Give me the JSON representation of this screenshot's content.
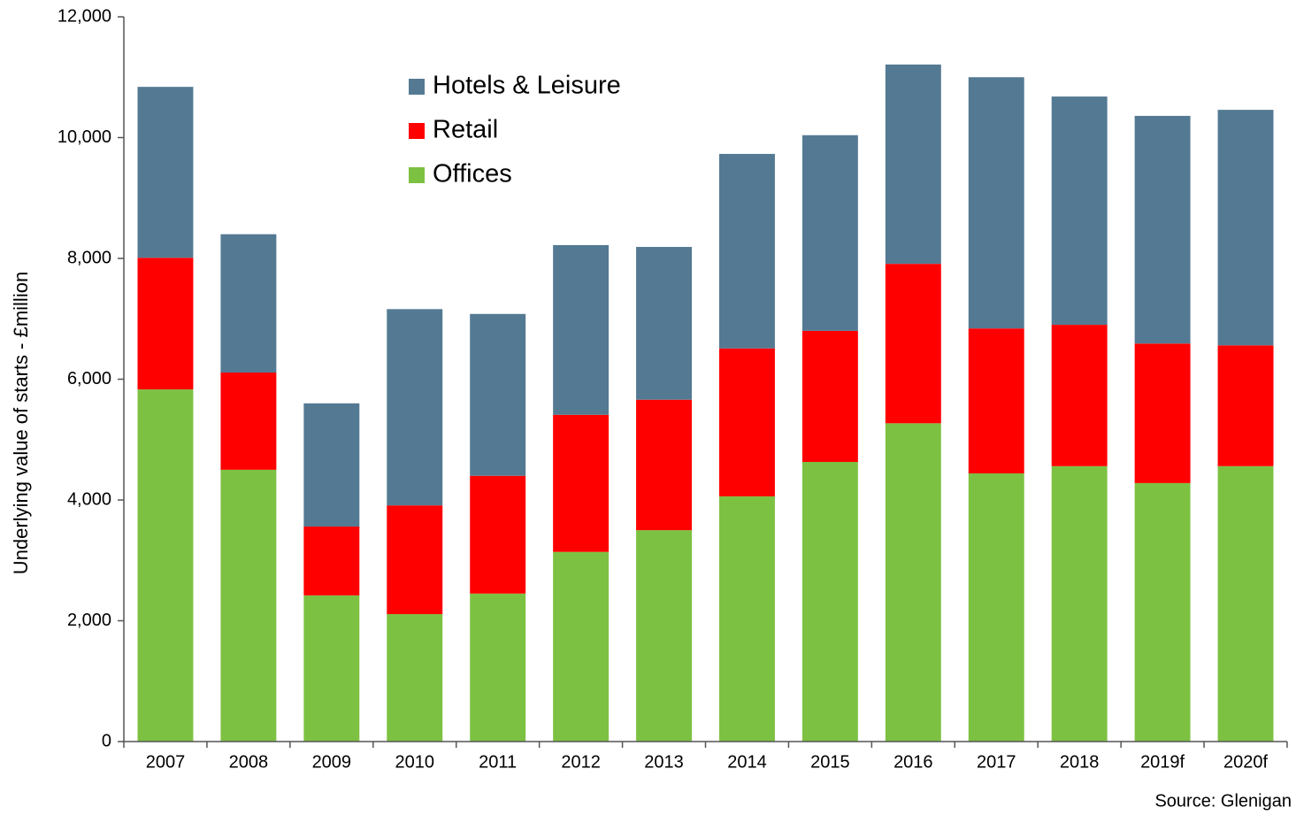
{
  "chart_data": {
    "type": "stacked-bar",
    "y_label": "Underlying value of starts - £million",
    "source": "Source: Glenigan",
    "categories": [
      "2007",
      "2008",
      "2009",
      "2010",
      "2011",
      "2012",
      "2013",
      "2014",
      "2015",
      "2016",
      "2017",
      "2018",
      "2019f",
      "2020f"
    ],
    "series": [
      {
        "name": "Offices",
        "color": "#7dc142",
        "values": [
          5830,
          4500,
          2420,
          2110,
          2450,
          3140,
          3500,
          4060,
          4630,
          5270,
          4440,
          4560,
          4280,
          4560
        ]
      },
      {
        "name": "Retail",
        "color": "#ff0000",
        "values": [
          2180,
          1610,
          1140,
          1800,
          1950,
          2270,
          2160,
          2450,
          2170,
          2640,
          2400,
          2340,
          2310,
          2000
        ]
      },
      {
        "name": "Hotels & Leisure",
        "color": "#547a93",
        "values": [
          2830,
          2290,
          2040,
          3250,
          2680,
          2810,
          2530,
          3220,
          3240,
          3300,
          4160,
          3780,
          3770,
          3900
        ]
      }
    ],
    "ylim": [
      0,
      12000
    ],
    "yticks": [
      0,
      {
        "value": 2000,
        "label": "2,000"
      },
      {
        "value": 4000,
        "label": "4,000"
      },
      {
        "value": 6000,
        "label": "6,000"
      },
      {
        "value": 8000,
        "label": "8,000"
      },
      {
        "value": 10000,
        "label": "10,000"
      },
      {
        "value": 12000,
        "label": "12,000"
      }
    ],
    "legend": "upper-left"
  }
}
